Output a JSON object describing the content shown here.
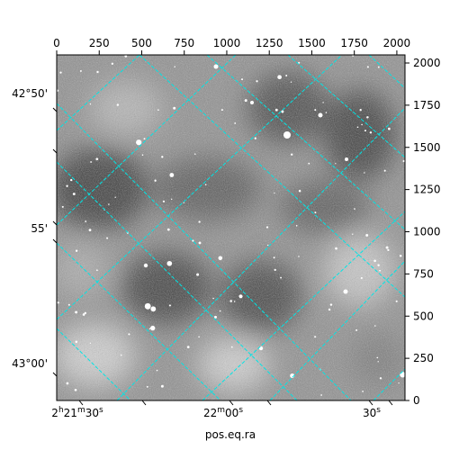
{
  "chart_data": {
    "type": "heatmap",
    "image_description_colormap": "gray",
    "grid_color": "#00e5e5",
    "xlabel": "pos.eq.ra",
    "pixel_axes": {
      "top_x_ticks": [
        0,
        250,
        500,
        750,
        1000,
        1250,
        1500,
        1750,
        2000
      ],
      "right_y_ticks": [
        0,
        250,
        500,
        750,
        1000,
        1250,
        1500,
        1750,
        2000
      ],
      "xlim": [
        0,
        2048
      ],
      "ylim": [
        0,
        2048
      ]
    },
    "world_axes": {
      "ra_ticks": [
        {
          "value": 7.5,
          "label_main": "2",
          "label_sup1": "h",
          "label_mid": "21",
          "label_sup2": "m",
          "label_tail": "30",
          "label_sup3": "s"
        },
        {
          "value": 100,
          "label_main": "22",
          "label_sup1": "m",
          "label_mid": "00",
          "label_sup2": "s",
          "label_tail": "",
          "label_sup3": ""
        },
        {
          "value": 192.5,
          "label_main": "30",
          "label_sup1": "s",
          "label_mid": "",
          "label_sup2": "",
          "label_tail": "",
          "label_sup3": ""
        }
      ],
      "dec_ticks": [
        {
          "value": 2040,
          "label": "42°50'"
        },
        {
          "value": 1020,
          "label": "55'"
        },
        {
          "value": 0,
          "label": "43°00'"
        }
      ]
    },
    "grid": true
  }
}
